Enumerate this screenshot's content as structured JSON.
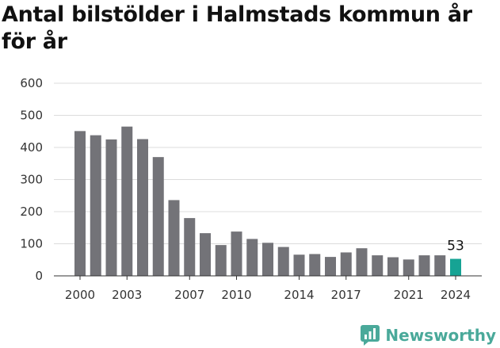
{
  "title": "Antal bilstölder i Halmstads kommun år för år",
  "brand": {
    "name": "Newsworthy",
    "icon": "newsworthy-logo-icon",
    "color": "#4aa99a"
  },
  "chart_data": {
    "type": "bar",
    "title": "Antal bilstölder i Halmstads kommun år för år",
    "xlabel": "",
    "ylabel": "",
    "ylim": [
      0,
      600
    ],
    "yticks": [
      0,
      100,
      200,
      300,
      400,
      500,
      600
    ],
    "xtick_labels": [
      "2000",
      "2003",
      "2007",
      "2010",
      "2014",
      "2017",
      "2021",
      "2024"
    ],
    "grid": true,
    "colors": {
      "bar": "#737378",
      "highlight": "#16a394"
    },
    "categories": [
      "2000",
      "2001",
      "2002",
      "2003",
      "2004",
      "2005",
      "2006",
      "2007",
      "2008",
      "2009",
      "2010",
      "2011",
      "2012",
      "2013",
      "2014",
      "2015",
      "2016",
      "2017",
      "2018",
      "2019",
      "2020",
      "2021",
      "2022",
      "2023",
      "2024"
    ],
    "values": [
      451,
      438,
      425,
      465,
      426,
      370,
      236,
      180,
      133,
      96,
      138,
      115,
      103,
      90,
      66,
      68,
      59,
      73,
      86,
      64,
      58,
      51,
      64,
      64,
      53
    ],
    "highlight_index": 24,
    "data_labels": [
      {
        "category": "2024",
        "text": "53"
      }
    ]
  }
}
